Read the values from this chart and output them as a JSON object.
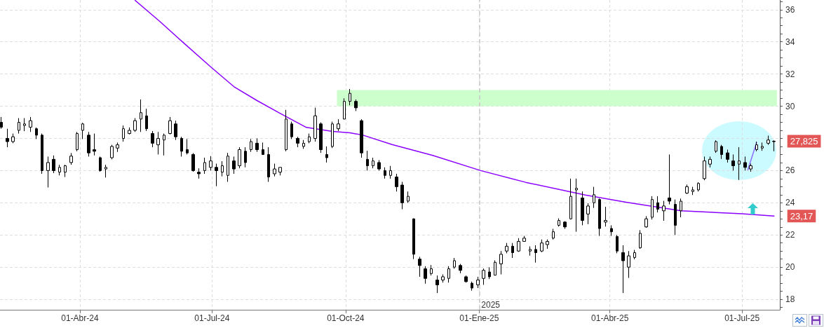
{
  "chart_data": {
    "type": "candlestick",
    "color": "#000000",
    "x": [
      "2024-02-07",
      "2024-02-11",
      "2024-02-15",
      "2024-02-19",
      "2024-02-23",
      "2024-02-27",
      "2024-03-02",
      "2024-03-06",
      "2024-03-10",
      "2024-03-14",
      "2024-03-18",
      "2024-03-22",
      "2024-03-26",
      "2024-03-30",
      "2024-04-03",
      "2024-04-07",
      "2024-04-11",
      "2024-04-15",
      "2024-04-19",
      "2024-04-23",
      "2024-04-27",
      "2024-05-01",
      "2024-05-05",
      "2024-05-09",
      "2024-05-13",
      "2024-05-17",
      "2024-05-21",
      "2024-05-25",
      "2024-05-29",
      "2024-06-02",
      "2024-06-06",
      "2024-06-10",
      "2024-06-14",
      "2024-06-18",
      "2024-06-22",
      "2024-06-26",
      "2024-06-30",
      "2024-07-04",
      "2024-07-08",
      "2024-07-12",
      "2024-07-16",
      "2024-07-20",
      "2024-07-24",
      "2024-07-28",
      "2024-08-01",
      "2024-08-05",
      "2024-08-09",
      "2024-08-13",
      "2024-08-17",
      "2024-08-21",
      "2024-08-25",
      "2024-08-29",
      "2024-09-02",
      "2024-09-06",
      "2024-09-10",
      "2024-09-14",
      "2024-09-18",
      "2024-09-22",
      "2024-09-26",
      "2024-09-30",
      "2024-10-04",
      "2024-10-08",
      "2024-10-12",
      "2024-10-16",
      "2024-10-20",
      "2024-10-24",
      "2024-10-28",
      "2024-11-01",
      "2024-11-05",
      "2024-11-09",
      "2024-11-13",
      "2024-11-17",
      "2024-11-21",
      "2024-11-25",
      "2024-11-29",
      "2024-12-03",
      "2024-12-07",
      "2024-12-11",
      "2024-12-15",
      "2024-12-19",
      "2024-12-23",
      "2024-12-27",
      "2024-12-31",
      "2025-01-04",
      "2025-01-08",
      "2025-01-12",
      "2025-01-16",
      "2025-01-20",
      "2025-01-24",
      "2025-01-28",
      "2025-02-01",
      "2025-02-05",
      "2025-02-09",
      "2025-02-13",
      "2025-02-17",
      "2025-02-21",
      "2025-02-25",
      "2025-03-01",
      "2025-03-05",
      "2025-03-09",
      "2025-03-13",
      "2025-03-17",
      "2025-03-21",
      "2025-03-25",
      "2025-03-29",
      "2025-04-02",
      "2025-04-06",
      "2025-04-10",
      "2025-04-14",
      "2025-04-18",
      "2025-04-22",
      "2025-04-26",
      "2025-04-30",
      "2025-05-04",
      "2025-05-08",
      "2025-05-12",
      "2025-05-16",
      "2025-05-20",
      "2025-05-24",
      "2025-05-28",
      "2025-06-01",
      "2025-06-05",
      "2025-06-09",
      "2025-06-13",
      "2025-06-17",
      "2025-06-21",
      "2025-06-25",
      "2025-06-29",
      "2025-07-03",
      "2025-07-07",
      "2025-07-11",
      "2025-07-15",
      "2025-07-19",
      "2025-07-23"
    ],
    "ohlc": [
      [
        29.0,
        29.33,
        28.6,
        28.7
      ],
      [
        28.0,
        28.6,
        27.45,
        27.8
      ],
      [
        27.8,
        28.3,
        27.7,
        28.1
      ],
      [
        28.5,
        29.26,
        28.3,
        29.0
      ],
      [
        28.8,
        29.26,
        28.45,
        28.9
      ],
      [
        28.7,
        29.33,
        28.4,
        29.1
      ],
      [
        28.6,
        28.68,
        27.96,
        28.2
      ],
      [
        28.2,
        28.3,
        25.8,
        26.0
      ],
      [
        26.0,
        26.87,
        24.95,
        26.5
      ],
      [
        26.7,
        26.94,
        25.84,
        26.0
      ],
      [
        25.9,
        26.36,
        25.7,
        26.2
      ],
      [
        25.9,
        26.36,
        25.6,
        26.3
      ],
      [
        26.5,
        27.09,
        26.36,
        26.9
      ],
      [
        27.3,
        28.4,
        27.2,
        28.3
      ],
      [
        28.5,
        28.97,
        27.96,
        28.9
      ],
      [
        28.2,
        28.4,
        26.87,
        27.1
      ],
      [
        27.3,
        28.3,
        26.94,
        27.2
      ],
      [
        26.8,
        26.87,
        25.93,
        26.0
      ],
      [
        26.1,
        26.36,
        25.57,
        26.2
      ],
      [
        26.8,
        27.6,
        26.7,
        27.5
      ],
      [
        27.4,
        27.74,
        27.16,
        27.6
      ],
      [
        28.0,
        28.8,
        27.8,
        28.6
      ],
      [
        28.3,
        28.68,
        28.25,
        28.5
      ],
      [
        28.5,
        29.26,
        28.4,
        29.1
      ],
      [
        29.2,
        30.42,
        28.4,
        29.6
      ],
      [
        29.4,
        29.84,
        28.46,
        28.6
      ],
      [
        28.3,
        28.46,
        27.45,
        27.7
      ],
      [
        27.6,
        28.4,
        27.0,
        28.0
      ],
      [
        27.9,
        28.3,
        26.94,
        28.2
      ],
      [
        28.3,
        29.33,
        28.25,
        29.1
      ],
      [
        28.9,
        29.1,
        27.9,
        28.1
      ],
      [
        28.0,
        28.1,
        26.87,
        27.2
      ],
      [
        27.3,
        27.96,
        27.0,
        27.1
      ],
      [
        27.0,
        27.09,
        25.93,
        26.0
      ],
      [
        25.9,
        26.14,
        25.5,
        25.8
      ],
      [
        26.0,
        26.8,
        25.8,
        26.5
      ],
      [
        26.2,
        26.9,
        26.0,
        26.6
      ],
      [
        26.2,
        26.43,
        25.03,
        26.0
      ],
      [
        25.9,
        26.58,
        25.64,
        26.3
      ],
      [
        25.7,
        27.1,
        25.3,
        26.9
      ],
      [
        26.6,
        26.87,
        25.8,
        26.1
      ],
      [
        26.3,
        27.45,
        26.14,
        27.3
      ],
      [
        27.2,
        27.45,
        26.2,
        26.5
      ],
      [
        27.3,
        27.96,
        27.16,
        27.8
      ],
      [
        27.7,
        28.0,
        27.16,
        27.3
      ],
      [
        27.3,
        27.74,
        27.0,
        27.0
      ],
      [
        27.0,
        27.45,
        25.3,
        25.6
      ],
      [
        25.8,
        26.43,
        25.64,
        26.1
      ],
      [
        25.9,
        26.2,
        25.7,
        26.2
      ],
      [
        27.3,
        29.77,
        27.2,
        29.2
      ],
      [
        28.9,
        29.04,
        27.96,
        28.1
      ],
      [
        28.0,
        28.1,
        27.45,
        27.7
      ],
      [
        27.5,
        27.9,
        27.35,
        27.7
      ],
      [
        27.8,
        28.3,
        27.7,
        28.1
      ],
      [
        28.0,
        29.91,
        27.8,
        29.4
      ],
      [
        28.9,
        29.0,
        27.1,
        27.3
      ],
      [
        27.0,
        27.5,
        26.5,
        26.8
      ],
      [
        27.5,
        29.04,
        27.4,
        28.9
      ],
      [
        28.6,
        29.19,
        28.46,
        28.9
      ],
      [
        29.2,
        30.49,
        29.19,
        30.3
      ],
      [
        30.3,
        31.07,
        30.06,
        30.8
      ],
      [
        30.3,
        30.42,
        29.7,
        29.9
      ],
      [
        29.1,
        29.19,
        26.8,
        27.1
      ],
      [
        26.7,
        27.23,
        26.0,
        26.3
      ],
      [
        26.3,
        26.8,
        26.14,
        26.6
      ],
      [
        26.5,
        26.65,
        26.0,
        26.1
      ],
      [
        26.0,
        26.2,
        25.5,
        25.7
      ],
      [
        25.7,
        26.29,
        25.5,
        26.0
      ],
      [
        25.6,
        25.8,
        24.7,
        25.0
      ],
      [
        25.1,
        25.3,
        23.6,
        24.0
      ],
      [
        24.1,
        24.7,
        24.0,
        24.4
      ],
      [
        23.0,
        23.03,
        20.5,
        20.8
      ],
      [
        20.5,
        20.64,
        19.4,
        20.1
      ],
      [
        19.9,
        20.06,
        18.97,
        19.3
      ],
      [
        19.6,
        20.13,
        19.48,
        19.9
      ],
      [
        19.2,
        19.48,
        18.39,
        18.9
      ],
      [
        19.2,
        19.55,
        19.04,
        19.4
      ],
      [
        19.3,
        20.06,
        19.04,
        19.9
      ],
      [
        20.0,
        20.57,
        19.9,
        20.4
      ],
      [
        20.1,
        20.2,
        19.62,
        19.8
      ],
      [
        19.4,
        19.48,
        19.04,
        19.1
      ],
      [
        19.0,
        19.1,
        18.54,
        18.7
      ],
      [
        18.9,
        19.4,
        18.7,
        19.2
      ],
      [
        19.3,
        19.91,
        18.9,
        19.8
      ],
      [
        19.7,
        19.99,
        19.26,
        19.4
      ],
      [
        19.5,
        20.42,
        19.48,
        20.3
      ],
      [
        20.2,
        21.0,
        19.55,
        20.8
      ],
      [
        21.0,
        21.5,
        20.86,
        21.3
      ],
      [
        21.3,
        21.5,
        20.57,
        20.9
      ],
      [
        21.0,
        21.8,
        20.95,
        21.6
      ],
      [
        21.6,
        21.94,
        21.58,
        21.8
      ],
      [
        21.0,
        21.29,
        20.71,
        21.1
      ],
      [
        21.1,
        21.36,
        20.28,
        20.9
      ],
      [
        21.0,
        21.72,
        20.93,
        21.5
      ],
      [
        21.4,
        21.72,
        21.14,
        21.6
      ],
      [
        21.8,
        22.38,
        21.72,
        22.2
      ],
      [
        22.6,
        23.03,
        22.52,
        22.9
      ],
      [
        22.8,
        22.85,
        22.38,
        22.5
      ],
      [
        23.0,
        25.5,
        22.96,
        24.4
      ],
      [
        24.8,
        25.5,
        22.2,
        24.9
      ],
      [
        24.3,
        24.7,
        22.6,
        22.9
      ],
      [
        23.3,
        23.97,
        22.67,
        23.8
      ],
      [
        24.0,
        24.99,
        23.68,
        24.5
      ],
      [
        24.2,
        24.26,
        21.94,
        22.4
      ],
      [
        22.8,
        23.75,
        22.52,
        22.9
      ],
      [
        22.4,
        22.6,
        21.94,
        22.2
      ],
      [
        21.9,
        22.0,
        20.86,
        21.0
      ],
      [
        20.9,
        21.36,
        18.39,
        20.4
      ],
      [
        20.0,
        21.0,
        19.33,
        20.7
      ],
      [
        20.6,
        21.07,
        20.49,
        20.9
      ],
      [
        21.2,
        22.3,
        21.14,
        22.1
      ],
      [
        22.5,
        23.17,
        22.45,
        23.0
      ],
      [
        23.1,
        24.41,
        22.96,
        24.2
      ],
      [
        24.0,
        24.41,
        23.4,
        23.6
      ],
      [
        23.5,
        24.12,
        22.88,
        23.8
      ],
      [
        24.3,
        27.0,
        23.9,
        24.1
      ],
      [
        23.9,
        24.2,
        22.0,
        22.6
      ],
      [
        23.5,
        24.26,
        23.1,
        24.1
      ],
      [
        24.6,
        25.13,
        24.55,
        25.0
      ],
      [
        24.7,
        24.99,
        24.48,
        24.8
      ],
      [
        24.8,
        25.28,
        24.7,
        25.2
      ],
      [
        25.5,
        26.87,
        25.4,
        26.6
      ],
      [
        26.4,
        26.87,
        26.2,
        26.7
      ],
      [
        27.2,
        27.88,
        27.1,
        27.8
      ],
      [
        27.5,
        27.6,
        26.72,
        27.0
      ],
      [
        27.1,
        27.3,
        26.5,
        26.7
      ],
      [
        26.6,
        27.0,
        26.0,
        26.3
      ],
      [
        26.4,
        27.45,
        25.42,
        26.6
      ],
      [
        26.5,
        26.87,
        26.0,
        26.2
      ],
      [
        26.1,
        26.43,
        25.93,
        26.3
      ],
      [
        27.3,
        27.8,
        27.2,
        27.6
      ],
      [
        27.4,
        27.74,
        27.23,
        27.5
      ],
      [
        27.7,
        28.17,
        27.6,
        27.9
      ],
      [
        27.8,
        27.88,
        27.2,
        27.825
      ]
    ],
    "series": [
      {
        "type": "area",
        "color": "#ccffcc",
        "x": [
          "2024-09-25",
          "2025-07-25"
        ],
        "values": [
          null,
          null
        ],
        "lower": [
          30,
          30
        ],
        "upper": [
          31,
          31
        ]
      },
      {
        "type": "line",
        "color": "#8b00ff",
        "x": [
          "2024-05-09",
          "2024-05-26",
          "2024-06-11",
          "2024-06-30",
          "2024-07-16",
          "2024-08-01",
          "2024-08-17",
          "2024-09-04",
          "2024-09-22",
          "2024-10-04",
          "2024-10-13",
          "2024-11-02",
          "2024-11-30",
          "2025-01-02",
          "2025-02-02",
          "2025-03-15",
          "2025-04-12",
          "2025-05-20",
          "2025-07-01",
          "2025-07-23"
        ],
        "values": [
          36.58,
          35.27,
          33.97,
          32.45,
          31.22,
          30.35,
          29.55,
          28.68,
          28.43,
          28.35,
          28.2,
          27.62,
          26.94,
          26.0,
          25.27,
          24.48,
          24.04,
          23.5,
          23.32,
          23.17
        ]
      },
      {
        "type": "line",
        "color": "#8c6cff",
        "x": [
          "2025-07-05",
          "2025-07-11"
        ],
        "values": [
          26.05,
          27.75
        ]
      }
    ],
    "xlim": [
      "2024-02-06",
      "2025-07-27"
    ],
    "xticks": [
      {
        "value": "2024-04-01",
        "label": "01-Abr-24"
      },
      {
        "value": "2024-07-01",
        "label": "01-Jul-24"
      },
      {
        "value": "2024-10-01",
        "label": "01-Oct-24"
      },
      {
        "value": "2025-01-01",
        "label": "01-Ene-25"
      },
      {
        "value": "2025-04-01",
        "label": "01-Abr-25"
      },
      {
        "value": "2025-07-01",
        "label": "01-Jul-25"
      }
    ],
    "ylim": [
      17.35,
      36.6
    ],
    "yticks": [
      {
        "value": 17.5,
        "label": null
      },
      18,
      {
        "value": 18.5,
        "label": null
      },
      {
        "value": 19,
        "label": null
      },
      {
        "value": 19.5,
        "label": null
      },
      20,
      {
        "value": 20.5,
        "label": null
      },
      {
        "value": 21,
        "label": null
      },
      {
        "value": 21.5,
        "label": null
      },
      22,
      {
        "value": 22.5,
        "label": null
      },
      {
        "value": 23,
        "label": null
      },
      {
        "value": 23.5,
        "label": null
      },
      24,
      {
        "value": 24.5,
        "label": null
      },
      {
        "value": 25,
        "label": null
      },
      {
        "value": 25.5,
        "label": null
      },
      26,
      {
        "value": 26.5,
        "label": null
      },
      {
        "value": 27,
        "label": null
      },
      {
        "value": 27.5,
        "label": null
      },
      {
        "value": 28,
        "label": null
      },
      {
        "value": 28.5,
        "label": null
      },
      {
        "value": 29,
        "label": null
      },
      {
        "value": 29.5,
        "label": null
      },
      30,
      {
        "value": 30.5,
        "label": null
      },
      {
        "value": 31,
        "label": null
      },
      {
        "value": 31.5,
        "label": null
      },
      32,
      {
        "value": 32.5,
        "label": null
      },
      {
        "value": 33,
        "label": null
      },
      {
        "value": 33.5,
        "label": null
      },
      34,
      {
        "value": 34.5,
        "label": null
      },
      {
        "value": 35,
        "label": null
      },
      {
        "value": 35.5,
        "label": null
      },
      36,
      {
        "value": 36.5,
        "label": null
      }
    ],
    "grid": true,
    "marker": "none",
    "ref_lines": [
      {
        "axis": "x",
        "value": "2025-01-01",
        "label": "2025",
        "color": "#c8c8c8",
        "line_style": "dashed"
      }
    ],
    "annotations": [
      {
        "text": "27,825",
        "x": "2025-07-23",
        "y": 27.825
      },
      {
        "text": "23,17",
        "x": "2025-07-23",
        "y": 23.17
      }
    ]
  }
}
